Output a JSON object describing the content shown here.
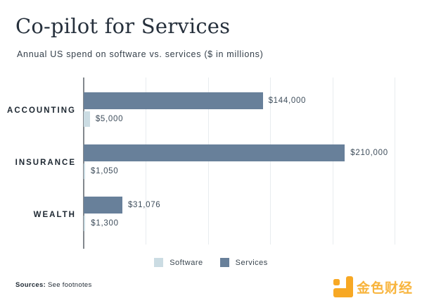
{
  "chart_data": {
    "type": "bar",
    "orientation": "horizontal",
    "title": "Co-pilot for Services",
    "subtitle": "Annual US spend on software vs. services ($ in millions)",
    "categories": [
      "ACCOUNTING",
      "INSURANCE",
      "WEALTH"
    ],
    "series": [
      {
        "name": "Software",
        "color": "#CBDCE3",
        "values": [
          5000,
          1050,
          1300
        ],
        "labels": [
          "$5,000",
          "$1,050",
          "$1,300"
        ]
      },
      {
        "name": "Services",
        "color": "#68809A",
        "values": [
          144000,
          210000,
          31076
        ],
        "labels": [
          "$144,000",
          "$210,000",
          "$31,076"
        ]
      }
    ],
    "xlim": [
      0,
      250000
    ],
    "gridline_interval": 50000,
    "grid": "vertical-only",
    "legend_position": "bottom-center",
    "bar_display_order": [
      "Services",
      "Software"
    ]
  },
  "footer": {
    "sources_label": "Sources:",
    "sources_text": "See footnotes",
    "logo_text": "金色财经",
    "logo_color": "#F7A824",
    "logo_text_color": "#F8B43C"
  }
}
